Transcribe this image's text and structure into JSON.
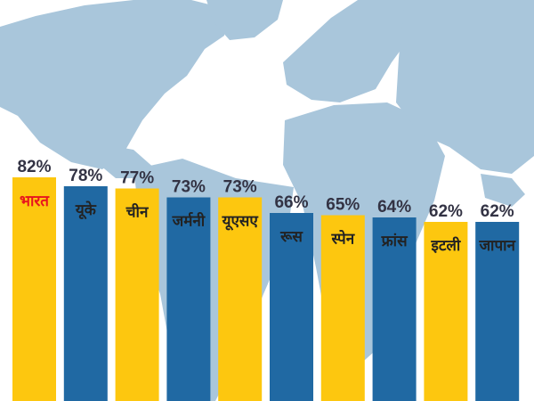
{
  "colors": {
    "map": "#a9c6db",
    "bar_primary": "#fdc70f",
    "bar_secondary": "#2069a3",
    "value_text": "#333344",
    "category_text": "#222222",
    "highlight_text": "#e8141e"
  },
  "background": "world-map",
  "chart_data": {
    "type": "bar",
    "title": "",
    "xlabel": "",
    "ylabel": "",
    "ylim": [
      0,
      85
    ],
    "grid": false,
    "legend": "none",
    "categories": [
      "भारत",
      "यूके",
      "चीन",
      "जर्मनी",
      "यूएसए",
      "रूस",
      "स्पेन",
      "फ्रांस",
      "इटली",
      "जापान"
    ],
    "values": [
      82,
      78,
      77,
      73,
      73,
      66,
      65,
      64,
      62,
      62
    ],
    "value_labels": [
      "82%",
      "78%",
      "77%",
      "73%",
      "73%",
      "66%",
      "65%",
      "64%",
      "62%",
      "62%"
    ],
    "bar_colors": [
      "#fdc70f",
      "#2069a3",
      "#fdc70f",
      "#2069a3",
      "#fdc70f",
      "#2069a3",
      "#fdc70f",
      "#2069a3",
      "#fdc70f",
      "#2069a3"
    ],
    "highlighted_category": "भारत"
  }
}
